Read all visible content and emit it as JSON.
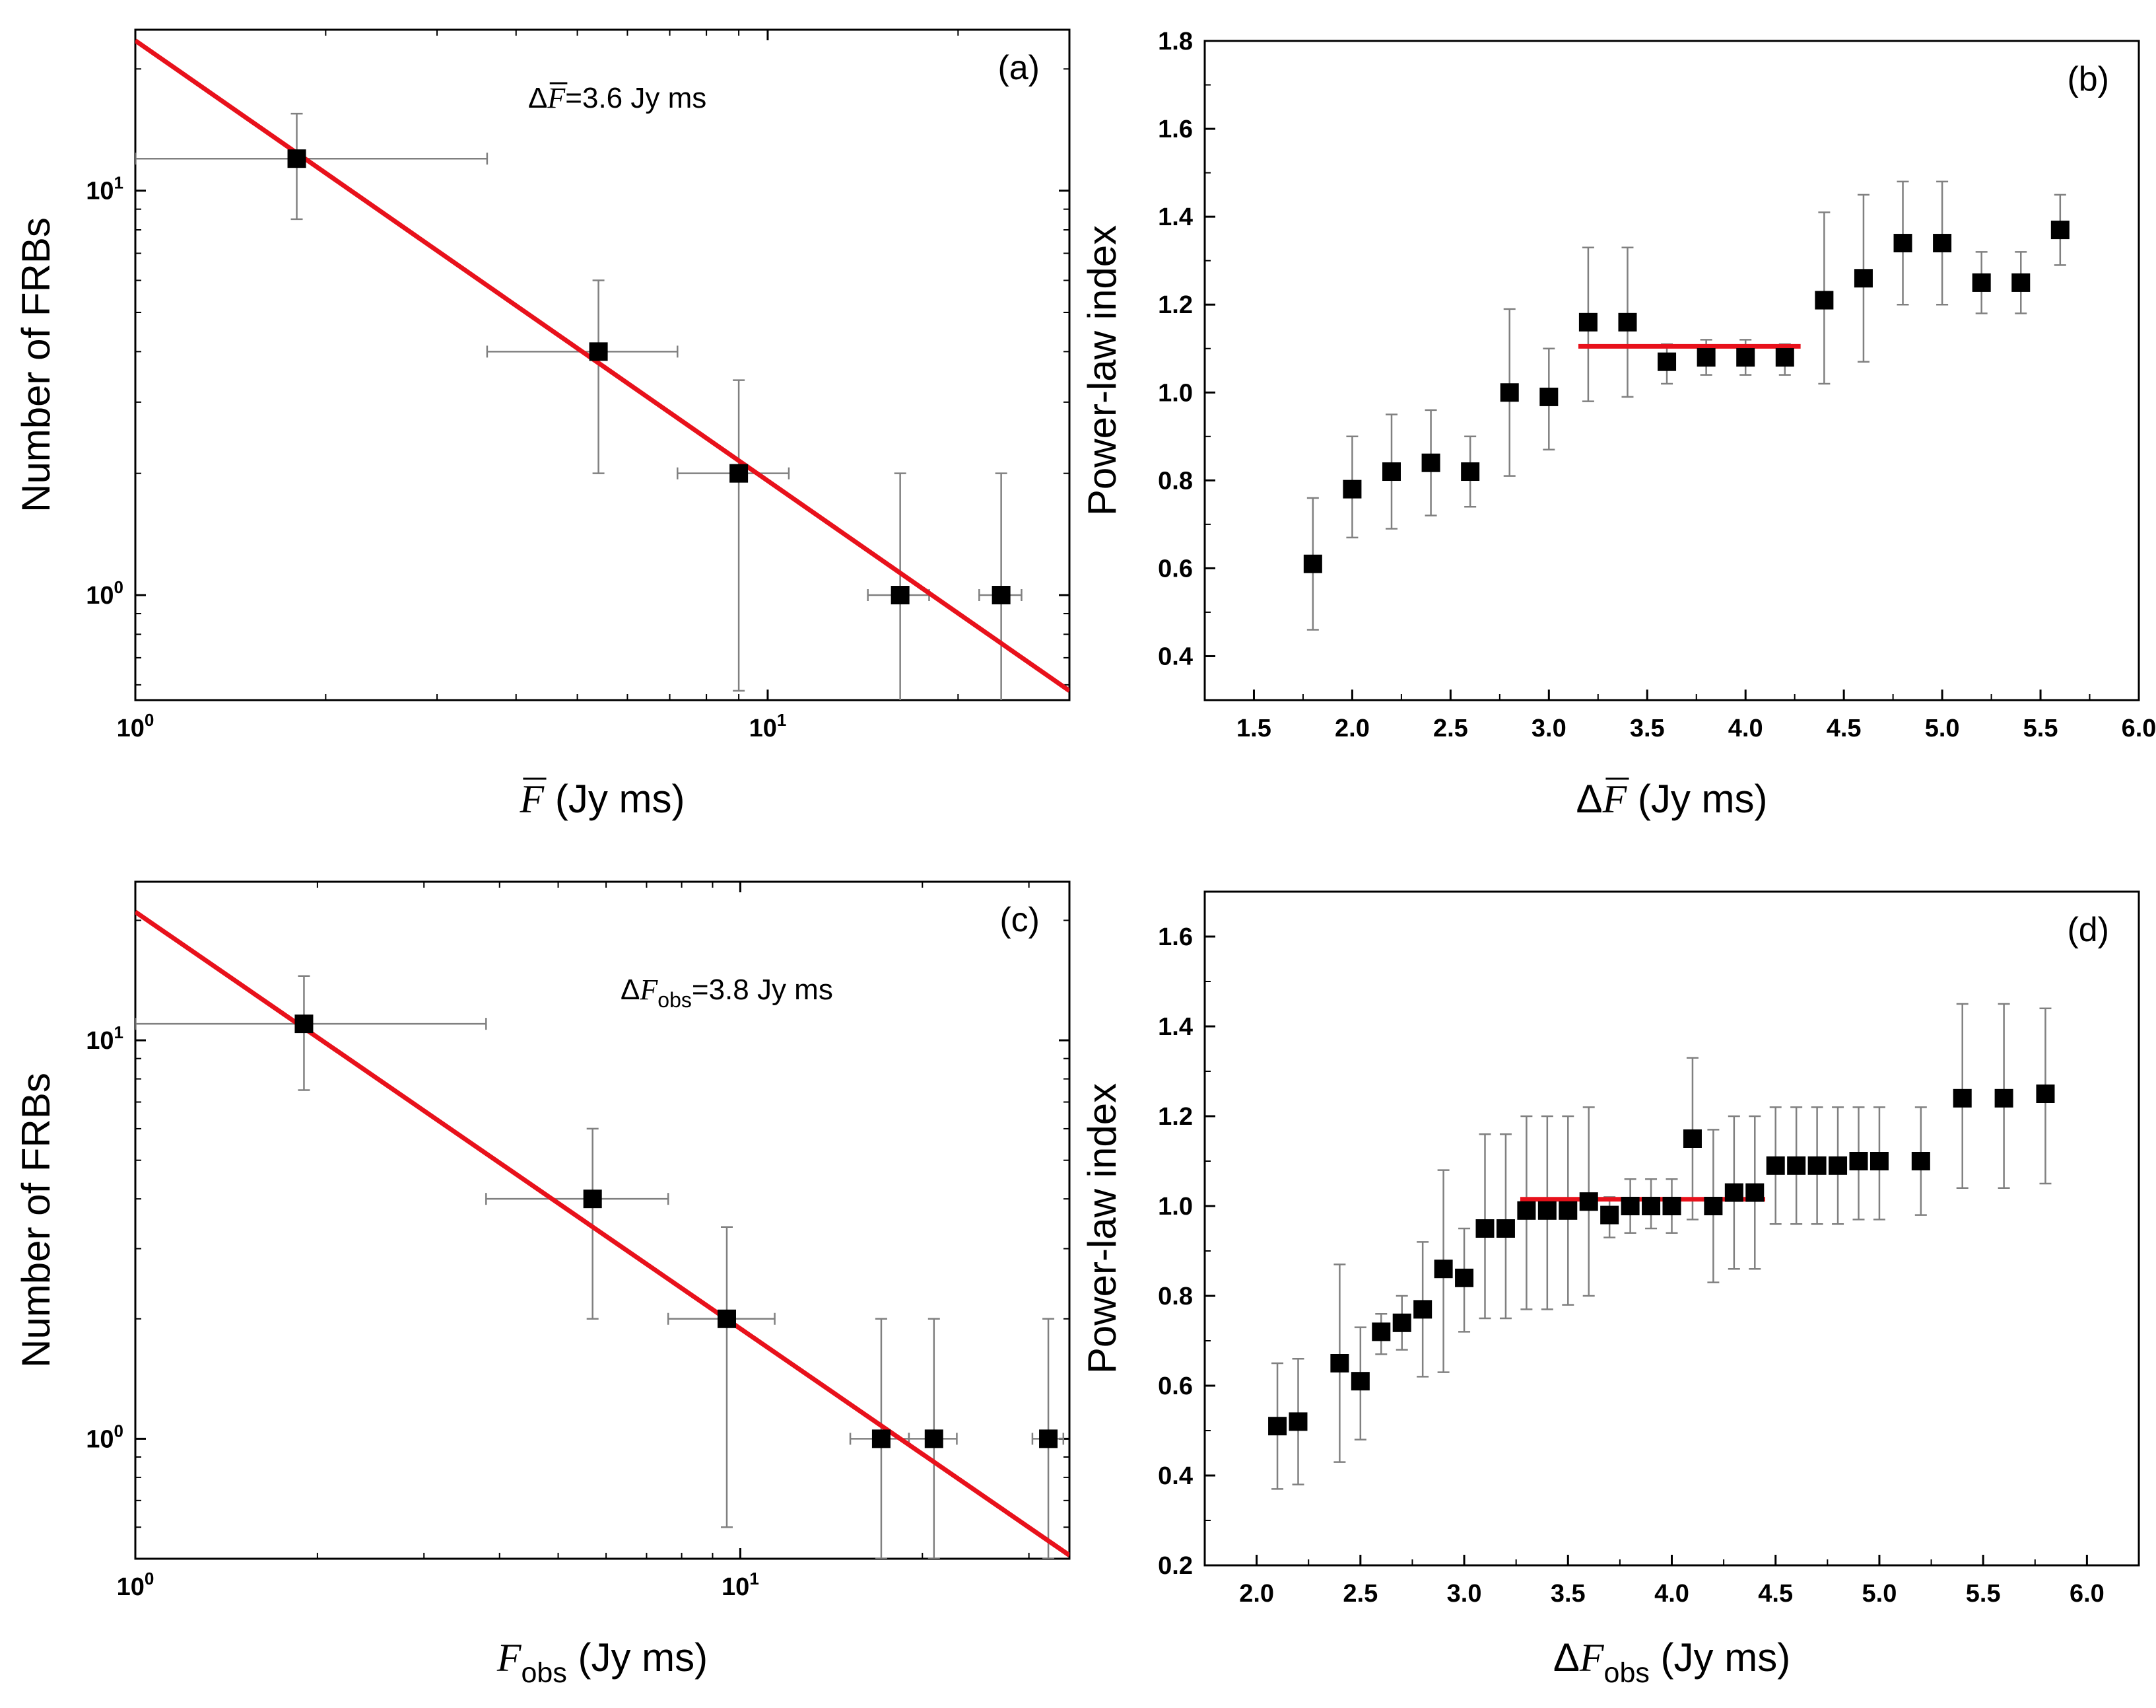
{
  "chart_data": [
    {
      "panel": "a",
      "type": "scatter",
      "panel_label": "(a)",
      "annotation": {
        "prefix": "Δ",
        "var": "F",
        "bar": true,
        "sub": "",
        "suffix": "=3.6 Jy ms"
      },
      "xlabel": {
        "var": "F",
        "bar": true,
        "sub": "",
        "unit": " (Jy ms)"
      },
      "ylabel": "Number of FRBs",
      "xscale": "log",
      "yscale": "log",
      "xlim": [
        1,
        30
      ],
      "ylim": [
        0.55,
        25
      ],
      "xticks": [
        {
          "v": 1,
          "label": "10",
          "exp": "0"
        },
        {
          "v": 10,
          "label": "10",
          "exp": "1"
        }
      ],
      "yticks": [
        {
          "v": 1,
          "label": "10",
          "exp": "0"
        },
        {
          "v": 10,
          "label": "10",
          "exp": "1"
        }
      ],
      "points": [
        {
          "x": 1.8,
          "y": 12,
          "xerr": [
            1.0,
            3.6
          ],
          "yerr": [
            8.5,
            15.5
          ]
        },
        {
          "x": 5.4,
          "y": 4,
          "xerr": [
            3.6,
            7.2
          ],
          "yerr": [
            2,
            6
          ]
        },
        {
          "x": 9.0,
          "y": 2,
          "xerr": [
            7.2,
            10.8
          ],
          "yerr": [
            0.58,
            3.4
          ]
        },
        {
          "x": 16.2,
          "y": 1,
          "xerr": [
            14.4,
            18.0
          ],
          "yerr": [
            0.5,
            2
          ]
        },
        {
          "x": 23.4,
          "y": 1,
          "xerr": [
            21.6,
            25.2
          ],
          "yerr": [
            0.5,
            2
          ]
        }
      ],
      "fit": {
        "x": [
          1,
          30
        ],
        "y": [
          23.5,
          0.58
        ]
      }
    },
    {
      "panel": "b",
      "type": "scatter",
      "panel_label": "(b)",
      "xlabel": {
        "prefix": "Δ",
        "var": "F",
        "bar": true,
        "sub": "",
        "unit": " (Jy ms)"
      },
      "ylabel": "Power-law index",
      "xscale": "linear",
      "yscale": "linear",
      "xlim": [
        1.25,
        6.0
      ],
      "ylim": [
        0.3,
        1.8
      ],
      "xticks": [
        {
          "v": 1.5,
          "label": "1.5"
        },
        {
          "v": 2.0,
          "label": "2.0"
        },
        {
          "v": 2.5,
          "label": "2.5"
        },
        {
          "v": 3.0,
          "label": "3.0"
        },
        {
          "v": 3.5,
          "label": "3.5"
        },
        {
          "v": 4.0,
          "label": "4.0"
        },
        {
          "v": 4.5,
          "label": "4.5"
        },
        {
          "v": 5.0,
          "label": "5.0"
        },
        {
          "v": 5.5,
          "label": "5.5"
        },
        {
          "v": 6.0,
          "label": "6.0"
        }
      ],
      "yticks": [
        {
          "v": 0.4,
          "label": "0.4"
        },
        {
          "v": 0.6,
          "label": "0.6"
        },
        {
          "v": 0.8,
          "label": "0.8"
        },
        {
          "v": 1.0,
          "label": "1.0"
        },
        {
          "v": 1.2,
          "label": "1.2"
        },
        {
          "v": 1.4,
          "label": "1.4"
        },
        {
          "v": 1.6,
          "label": "1.6"
        },
        {
          "v": 1.8,
          "label": "1.8"
        }
      ],
      "points": [
        {
          "x": 1.8,
          "y": 0.61,
          "yerr": [
            0.46,
            0.76
          ]
        },
        {
          "x": 2.0,
          "y": 0.78,
          "yerr": [
            0.67,
            0.9
          ]
        },
        {
          "x": 2.2,
          "y": 0.82,
          "yerr": [
            0.69,
            0.95
          ]
        },
        {
          "x": 2.4,
          "y": 0.84,
          "yerr": [
            0.72,
            0.96
          ]
        },
        {
          "x": 2.6,
          "y": 0.82,
          "yerr": [
            0.74,
            0.9
          ]
        },
        {
          "x": 2.8,
          "y": 1.0,
          "yerr": [
            0.81,
            1.19
          ]
        },
        {
          "x": 3.0,
          "y": 0.99,
          "yerr": [
            0.87,
            1.1
          ]
        },
        {
          "x": 3.2,
          "y": 1.16,
          "yerr": [
            0.98,
            1.33
          ]
        },
        {
          "x": 3.4,
          "y": 1.16,
          "yerr": [
            0.99,
            1.33
          ]
        },
        {
          "x": 3.6,
          "y": 1.07,
          "yerr": [
            1.02,
            1.11
          ]
        },
        {
          "x": 3.8,
          "y": 1.08,
          "yerr": [
            1.04,
            1.12
          ]
        },
        {
          "x": 4.0,
          "y": 1.08,
          "yerr": [
            1.04,
            1.12
          ]
        },
        {
          "x": 4.2,
          "y": 1.08,
          "yerr": [
            1.04,
            1.11
          ]
        },
        {
          "x": 4.4,
          "y": 1.21,
          "yerr": [
            1.02,
            1.41
          ]
        },
        {
          "x": 4.6,
          "y": 1.26,
          "yerr": [
            1.07,
            1.45
          ]
        },
        {
          "x": 4.8,
          "y": 1.34,
          "yerr": [
            1.2,
            1.48
          ]
        },
        {
          "x": 5.0,
          "y": 1.34,
          "yerr": [
            1.2,
            1.48
          ]
        },
        {
          "x": 5.2,
          "y": 1.25,
          "yerr": [
            1.18,
            1.32
          ]
        },
        {
          "x": 5.4,
          "y": 1.25,
          "yerr": [
            1.18,
            1.32
          ]
        },
        {
          "x": 5.6,
          "y": 1.37,
          "yerr": [
            1.29,
            1.45
          ]
        }
      ],
      "fit": {
        "x": [
          3.15,
          4.28
        ],
        "y": [
          1.105,
          1.105
        ]
      }
    },
    {
      "panel": "c",
      "type": "scatter",
      "panel_label": "(c)",
      "annotation": {
        "prefix": "Δ",
        "var": "F",
        "bar": false,
        "sub": "obs",
        "suffix": "=3.8 Jy ms"
      },
      "xlabel": {
        "var": "F",
        "bar": false,
        "sub": "obs",
        "unit": "  (Jy ms)"
      },
      "ylabel": "Number of FRBs",
      "xscale": "log",
      "yscale": "log",
      "xlim": [
        1,
        35
      ],
      "ylim": [
        0.5,
        25
      ],
      "xticks": [
        {
          "v": 1,
          "label": "10",
          "exp": "0"
        },
        {
          "v": 10,
          "label": "10",
          "exp": "1"
        }
      ],
      "yticks": [
        {
          "v": 1,
          "label": "10",
          "exp": "0"
        },
        {
          "v": 10,
          "label": "10",
          "exp": "1"
        }
      ],
      "points": [
        {
          "x": 1.9,
          "y": 11,
          "xerr": [
            1.0,
            3.8
          ],
          "yerr": [
            7.5,
            14.5
          ]
        },
        {
          "x": 5.7,
          "y": 4,
          "xerr": [
            3.8,
            7.6
          ],
          "yerr": [
            2,
            6
          ]
        },
        {
          "x": 9.5,
          "y": 2,
          "xerr": [
            7.6,
            11.4
          ],
          "yerr": [
            0.6,
            3.4
          ]
        },
        {
          "x": 17.1,
          "y": 1,
          "xerr": [
            15.2,
            19.0
          ],
          "yerr": [
            0.5,
            2
          ]
        },
        {
          "x": 20.9,
          "y": 1,
          "xerr": [
            19.0,
            22.8
          ],
          "yerr": [
            0.5,
            2
          ]
        },
        {
          "x": 32.3,
          "y": 1,
          "xerr": [
            30.4,
            34.2
          ],
          "yerr": [
            0.5,
            2
          ]
        }
      ],
      "fit": {
        "x": [
          1,
          35
        ],
        "y": [
          21,
          0.51
        ]
      }
    },
    {
      "panel": "d",
      "type": "scatter",
      "panel_label": "(d)",
      "xlabel": {
        "prefix": "Δ",
        "var": "F",
        "bar": false,
        "sub": "obs",
        "unit": " (Jy ms)"
      },
      "ylabel": "Power-law index",
      "xscale": "linear",
      "yscale": "linear",
      "xlim": [
        1.75,
        6.25
      ],
      "ylim": [
        0.2,
        1.7
      ],
      "xticks": [
        {
          "v": 2.0,
          "label": "2.0"
        },
        {
          "v": 2.5,
          "label": "2.5"
        },
        {
          "v": 3.0,
          "label": "3.0"
        },
        {
          "v": 3.5,
          "label": "3.5"
        },
        {
          "v": 4.0,
          "label": "4.0"
        },
        {
          "v": 4.5,
          "label": "4.5"
        },
        {
          "v": 5.0,
          "label": "5.0"
        },
        {
          "v": 5.5,
          "label": "5.5"
        },
        {
          "v": 6.0,
          "label": "6.0"
        }
      ],
      "yticks": [
        {
          "v": 0.2,
          "label": "0.2"
        },
        {
          "v": 0.4,
          "label": "0.4"
        },
        {
          "v": 0.6,
          "label": "0.6"
        },
        {
          "v": 0.8,
          "label": "0.8"
        },
        {
          "v": 1.0,
          "label": "1.0"
        },
        {
          "v": 1.2,
          "label": "1.2"
        },
        {
          "v": 1.4,
          "label": "1.4"
        },
        {
          "v": 1.6,
          "label": "1.6"
        }
      ],
      "points": [
        {
          "x": 2.1,
          "y": 0.51,
          "yerr": [
            0.37,
            0.65
          ]
        },
        {
          "x": 2.2,
          "y": 0.52,
          "yerr": [
            0.38,
            0.66
          ]
        },
        {
          "x": 2.4,
          "y": 0.65,
          "yerr": [
            0.43,
            0.87
          ]
        },
        {
          "x": 2.5,
          "y": 0.61,
          "yerr": [
            0.48,
            0.73
          ]
        },
        {
          "x": 2.6,
          "y": 0.72,
          "yerr": [
            0.67,
            0.76
          ]
        },
        {
          "x": 2.7,
          "y": 0.74,
          "yerr": [
            0.68,
            0.8
          ]
        },
        {
          "x": 2.8,
          "y": 0.77,
          "yerr": [
            0.62,
            0.92
          ]
        },
        {
          "x": 2.9,
          "y": 0.86,
          "yerr": [
            0.63,
            1.08
          ]
        },
        {
          "x": 3.0,
          "y": 0.84,
          "yerr": [
            0.72,
            0.95
          ]
        },
        {
          "x": 3.1,
          "y": 0.95,
          "yerr": [
            0.75,
            1.16
          ]
        },
        {
          "x": 3.2,
          "y": 0.95,
          "yerr": [
            0.75,
            1.16
          ]
        },
        {
          "x": 3.3,
          "y": 0.99,
          "yerr": [
            0.77,
            1.2
          ]
        },
        {
          "x": 3.4,
          "y": 0.99,
          "yerr": [
            0.77,
            1.2
          ]
        },
        {
          "x": 3.5,
          "y": 0.99,
          "yerr": [
            0.78,
            1.2
          ]
        },
        {
          "x": 3.6,
          "y": 1.01,
          "yerr": [
            0.8,
            1.22
          ]
        },
        {
          "x": 3.7,
          "y": 0.98,
          "yerr": [
            0.93,
            1.02
          ]
        },
        {
          "x": 3.8,
          "y": 1.0,
          "yerr": [
            0.94,
            1.06
          ]
        },
        {
          "x": 3.9,
          "y": 1.0,
          "yerr": [
            0.95,
            1.06
          ]
        },
        {
          "x": 4.0,
          "y": 1.0,
          "yerr": [
            0.94,
            1.06
          ]
        },
        {
          "x": 4.1,
          "y": 1.15,
          "yerr": [
            0.97,
            1.33
          ]
        },
        {
          "x": 4.2,
          "y": 1.0,
          "yerr": [
            0.83,
            1.17
          ]
        },
        {
          "x": 4.3,
          "y": 1.03,
          "yerr": [
            0.86,
            1.2
          ]
        },
        {
          "x": 4.4,
          "y": 1.03,
          "yerr": [
            0.86,
            1.2
          ]
        },
        {
          "x": 4.5,
          "y": 1.09,
          "yerr": [
            0.96,
            1.22
          ]
        },
        {
          "x": 4.6,
          "y": 1.09,
          "yerr": [
            0.96,
            1.22
          ]
        },
        {
          "x": 4.7,
          "y": 1.09,
          "yerr": [
            0.96,
            1.22
          ]
        },
        {
          "x": 4.8,
          "y": 1.09,
          "yerr": [
            0.96,
            1.22
          ]
        },
        {
          "x": 4.9,
          "y": 1.1,
          "yerr": [
            0.97,
            1.22
          ]
        },
        {
          "x": 5.0,
          "y": 1.1,
          "yerr": [
            0.97,
            1.22
          ]
        },
        {
          "x": 5.2,
          "y": 1.1,
          "yerr": [
            0.98,
            1.22
          ]
        },
        {
          "x": 5.4,
          "y": 1.24,
          "yerr": [
            1.04,
            1.45
          ]
        },
        {
          "x": 5.6,
          "y": 1.24,
          "yerr": [
            1.04,
            1.45
          ]
        },
        {
          "x": 5.8,
          "y": 1.25,
          "yerr": [
            1.05,
            1.44
          ]
        }
      ],
      "fit": {
        "x": [
          3.27,
          4.45
        ],
        "y": [
          1.015,
          1.015
        ]
      }
    }
  ],
  "colors": {
    "fit": "#e8111b",
    "marker": "#000000",
    "errorbar": "#808080",
    "axis": "#000000"
  }
}
